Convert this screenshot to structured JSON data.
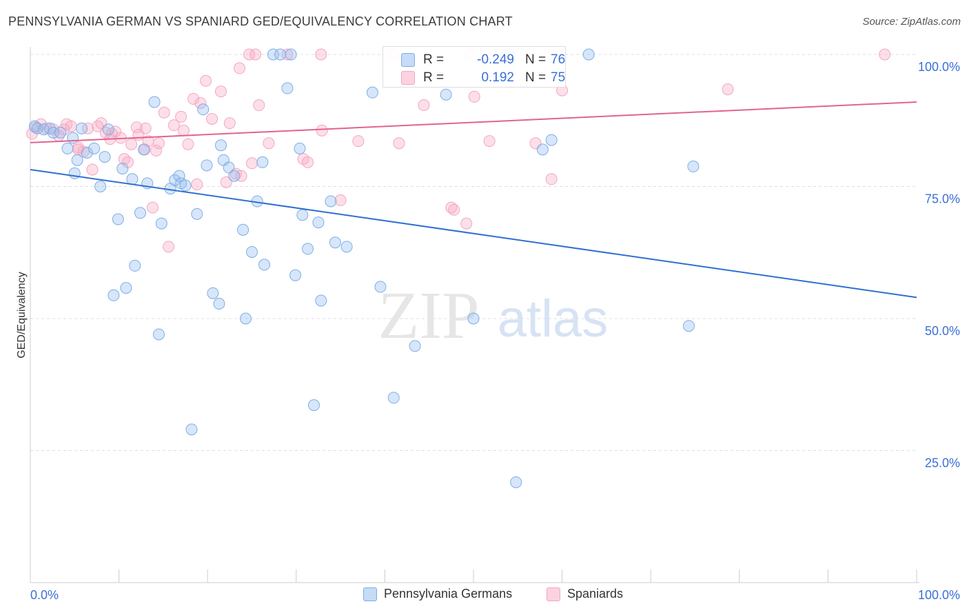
{
  "title": "PENNSYLVANIA GERMAN VS SPANIARD GED/EQUIVALENCY CORRELATION CHART",
  "source": "Source: ZipAtlas.com",
  "watermark": {
    "zip": "ZIP",
    "atlas": "atlas"
  },
  "legend": {
    "series1": {
      "label": "Pennsylvania Germans",
      "color": "#7baee8"
    },
    "series2": {
      "label": "Spaniards",
      "color": "#f4a6c0"
    }
  },
  "stats": {
    "row1": {
      "r_label": "R =",
      "r_value": "-0.249",
      "n_label": "N =",
      "n_value": "76"
    },
    "row2": {
      "r_label": "R =",
      "r_value": "0.192",
      "n_label": "N =",
      "n_value": "75"
    }
  },
  "chart_data": {
    "type": "scatter",
    "title": "PENNSYLVANIA GERMAN VS SPANIARD GED/EQUIVALENCY CORRELATION CHART",
    "xlabel": "",
    "ylabel": "GED/Equivalency",
    "xlim": [
      0,
      100
    ],
    "ylim": [
      0,
      100
    ],
    "x_tick_labels": [
      "0.0%",
      "100.0%"
    ],
    "y_ticks": [
      25,
      50,
      75,
      100
    ],
    "y_tick_labels": [
      "25.0%",
      "50.0%",
      "75.0%",
      "100.0%"
    ],
    "grid": true,
    "legend_position": "bottom",
    "series": [
      {
        "name": "Pennsylvania Germans",
        "color": "#7baee8",
        "line_color": "#2f6fd0",
        "trend": {
          "x": [
            0,
            100
          ],
          "y": [
            78.2,
            54.0
          ]
        },
        "points": [
          {
            "x": 0.5,
            "y": 86.4
          },
          {
            "x": 0.8,
            "y": 86.0
          },
          {
            "x": 1.5,
            "y": 85.8
          },
          {
            "x": 2.2,
            "y": 86.0
          },
          {
            "x": 2.6,
            "y": 85.2
          },
          {
            "x": 3.4,
            "y": 85.2
          },
          {
            "x": 4.2,
            "y": 82.2
          },
          {
            "x": 4.8,
            "y": 84.2
          },
          {
            "x": 5.3,
            "y": 80.0
          },
          {
            "x": 5.8,
            "y": 86.0
          },
          {
            "x": 6.4,
            "y": 81.4
          },
          {
            "x": 7.2,
            "y": 82.2
          },
          {
            "x": 7.9,
            "y": 75.0
          },
          {
            "x": 8.4,
            "y": 80.6
          },
          {
            "x": 8.8,
            "y": 85.8
          },
          {
            "x": 9.4,
            "y": 54.4
          },
          {
            "x": 9.9,
            "y": 68.8
          },
          {
            "x": 10.4,
            "y": 78.4
          },
          {
            "x": 10.8,
            "y": 55.8
          },
          {
            "x": 11.5,
            "y": 76.4
          },
          {
            "x": 11.8,
            "y": 60.0
          },
          {
            "x": 12.4,
            "y": 70.0
          },
          {
            "x": 12.8,
            "y": 82.0
          },
          {
            "x": 13.2,
            "y": 75.6
          },
          {
            "x": 14.0,
            "y": 91.0
          },
          {
            "x": 14.5,
            "y": 47.0
          },
          {
            "x": 14.8,
            "y": 68.0
          },
          {
            "x": 15.8,
            "y": 74.6
          },
          {
            "x": 16.3,
            "y": 76.2
          },
          {
            "x": 16.8,
            "y": 77.0
          },
          {
            "x": 17.0,
            "y": 75.6
          },
          {
            "x": 17.5,
            "y": 75.2
          },
          {
            "x": 18.2,
            "y": 29.0
          },
          {
            "x": 18.8,
            "y": 69.8
          },
          {
            "x": 19.5,
            "y": 89.6
          },
          {
            "x": 19.9,
            "y": 79.0
          },
          {
            "x": 20.6,
            "y": 54.8
          },
          {
            "x": 21.3,
            "y": 52.8
          },
          {
            "x": 21.8,
            "y": 80.0
          },
          {
            "x": 22.4,
            "y": 78.6
          },
          {
            "x": 23.0,
            "y": 77.0
          },
          {
            "x": 24.0,
            "y": 66.8
          },
          {
            "x": 24.3,
            "y": 50.0
          },
          {
            "x": 25.0,
            "y": 62.6
          },
          {
            "x": 25.6,
            "y": 72.2
          },
          {
            "x": 26.2,
            "y": 79.6
          },
          {
            "x": 26.4,
            "y": 60.2
          },
          {
            "x": 27.4,
            "y": 100.0
          },
          {
            "x": 28.2,
            "y": 100.0
          },
          {
            "x": 29.0,
            "y": 93.6
          },
          {
            "x": 29.4,
            "y": 100.0
          },
          {
            "x": 29.9,
            "y": 58.2
          },
          {
            "x": 30.4,
            "y": 82.2
          },
          {
            "x": 30.7,
            "y": 69.6
          },
          {
            "x": 31.3,
            "y": 63.2
          },
          {
            "x": 32.0,
            "y": 33.6
          },
          {
            "x": 32.5,
            "y": 68.2
          },
          {
            "x": 32.8,
            "y": 53.4
          },
          {
            "x": 33.9,
            "y": 72.2
          },
          {
            "x": 34.4,
            "y": 64.4
          },
          {
            "x": 35.7,
            "y": 63.6
          },
          {
            "x": 38.6,
            "y": 92.8
          },
          {
            "x": 39.5,
            "y": 56.0
          },
          {
            "x": 41.0,
            "y": 35.0
          },
          {
            "x": 43.4,
            "y": 44.8
          },
          {
            "x": 46.9,
            "y": 92.4
          },
          {
            "x": 50.0,
            "y": 50.0
          },
          {
            "x": 54.0,
            "y": 100.0
          },
          {
            "x": 54.8,
            "y": 19.0
          },
          {
            "x": 57.8,
            "y": 82.0
          },
          {
            "x": 58.8,
            "y": 83.8
          },
          {
            "x": 63.0,
            "y": 100.0
          },
          {
            "x": 74.8,
            "y": 78.8
          },
          {
            "x": 74.3,
            "y": 48.6
          },
          {
            "x": 21.5,
            "y": 82.8
          },
          {
            "x": 5.0,
            "y": 77.5
          }
        ]
      },
      {
        "name": "Spaniards",
        "color": "#f4a6c0",
        "line_color": "#e2638f",
        "trend": {
          "x": [
            0,
            100
          ],
          "y": [
            83.3,
            91.0
          ]
        },
        "points": [
          {
            "x": 0.2,
            "y": 85.0
          },
          {
            "x": 0.6,
            "y": 86.2
          },
          {
            "x": 1.2,
            "y": 86.8
          },
          {
            "x": 1.8,
            "y": 86.0
          },
          {
            "x": 2.6,
            "y": 85.8
          },
          {
            "x": 3.2,
            "y": 84.6
          },
          {
            "x": 3.8,
            "y": 85.8
          },
          {
            "x": 4.1,
            "y": 86.8
          },
          {
            "x": 4.6,
            "y": 86.4
          },
          {
            "x": 5.4,
            "y": 82.0
          },
          {
            "x": 6.0,
            "y": 81.6
          },
          {
            "x": 6.5,
            "y": 86.0
          },
          {
            "x": 7.0,
            "y": 78.2
          },
          {
            "x": 7.6,
            "y": 86.4
          },
          {
            "x": 8.0,
            "y": 87.0
          },
          {
            "x": 8.5,
            "y": 85.2
          },
          {
            "x": 9.0,
            "y": 84.0
          },
          {
            "x": 9.6,
            "y": 85.4
          },
          {
            "x": 10.2,
            "y": 84.2
          },
          {
            "x": 10.6,
            "y": 80.2
          },
          {
            "x": 11.0,
            "y": 79.6
          },
          {
            "x": 11.4,
            "y": 83.0
          },
          {
            "x": 12.0,
            "y": 86.2
          },
          {
            "x": 12.2,
            "y": 84.8
          },
          {
            "x": 12.9,
            "y": 82.0
          },
          {
            "x": 13.3,
            "y": 83.6
          },
          {
            "x": 13.8,
            "y": 71.0
          },
          {
            "x": 14.2,
            "y": 81.8
          },
          {
            "x": 14.5,
            "y": 83.2
          },
          {
            "x": 15.1,
            "y": 89.0
          },
          {
            "x": 15.6,
            "y": 63.6
          },
          {
            "x": 16.2,
            "y": 86.6
          },
          {
            "x": 17.0,
            "y": 88.2
          },
          {
            "x": 17.3,
            "y": 85.6
          },
          {
            "x": 17.8,
            "y": 83.0
          },
          {
            "x": 18.4,
            "y": 91.6
          },
          {
            "x": 18.8,
            "y": 75.4
          },
          {
            "x": 19.2,
            "y": 90.8
          },
          {
            "x": 19.8,
            "y": 95.0
          },
          {
            "x": 20.5,
            "y": 87.8
          },
          {
            "x": 21.5,
            "y": 93.0
          },
          {
            "x": 22.1,
            "y": 75.8
          },
          {
            "x": 22.5,
            "y": 87.0
          },
          {
            "x": 23.2,
            "y": 77.4
          },
          {
            "x": 23.6,
            "y": 97.4
          },
          {
            "x": 24.7,
            "y": 100.0
          },
          {
            "x": 25.0,
            "y": 79.4
          },
          {
            "x": 25.4,
            "y": 100.0
          },
          {
            "x": 25.8,
            "y": 90.4
          },
          {
            "x": 26.9,
            "y": 83.2
          },
          {
            "x": 29.0,
            "y": 100.0
          },
          {
            "x": 30.8,
            "y": 80.2
          },
          {
            "x": 31.3,
            "y": 79.6
          },
          {
            "x": 32.8,
            "y": 100.0
          },
          {
            "x": 32.9,
            "y": 85.6
          },
          {
            "x": 35.0,
            "y": 72.4
          },
          {
            "x": 37.0,
            "y": 83.6
          },
          {
            "x": 41.0,
            "y": 100.0
          },
          {
            "x": 41.6,
            "y": 83.2
          },
          {
            "x": 44.4,
            "y": 90.4
          },
          {
            "x": 47.5,
            "y": 71.0
          },
          {
            "x": 47.8,
            "y": 70.6
          },
          {
            "x": 49.2,
            "y": 68.0
          },
          {
            "x": 49.6,
            "y": 100.0
          },
          {
            "x": 50.1,
            "y": 92.0
          },
          {
            "x": 51.8,
            "y": 83.6
          },
          {
            "x": 57.0,
            "y": 83.2
          },
          {
            "x": 58.8,
            "y": 76.4
          },
          {
            "x": 60.0,
            "y": 93.2
          },
          {
            "x": 78.7,
            "y": 93.4
          },
          {
            "x": 96.4,
            "y": 100.0
          },
          {
            "x": 23.8,
            "y": 77.0
          },
          {
            "x": 5.4,
            "y": 82.4
          },
          {
            "x": 13.0,
            "y": 86.0
          },
          {
            "x": 9.2,
            "y": 85.0
          }
        ]
      }
    ]
  }
}
